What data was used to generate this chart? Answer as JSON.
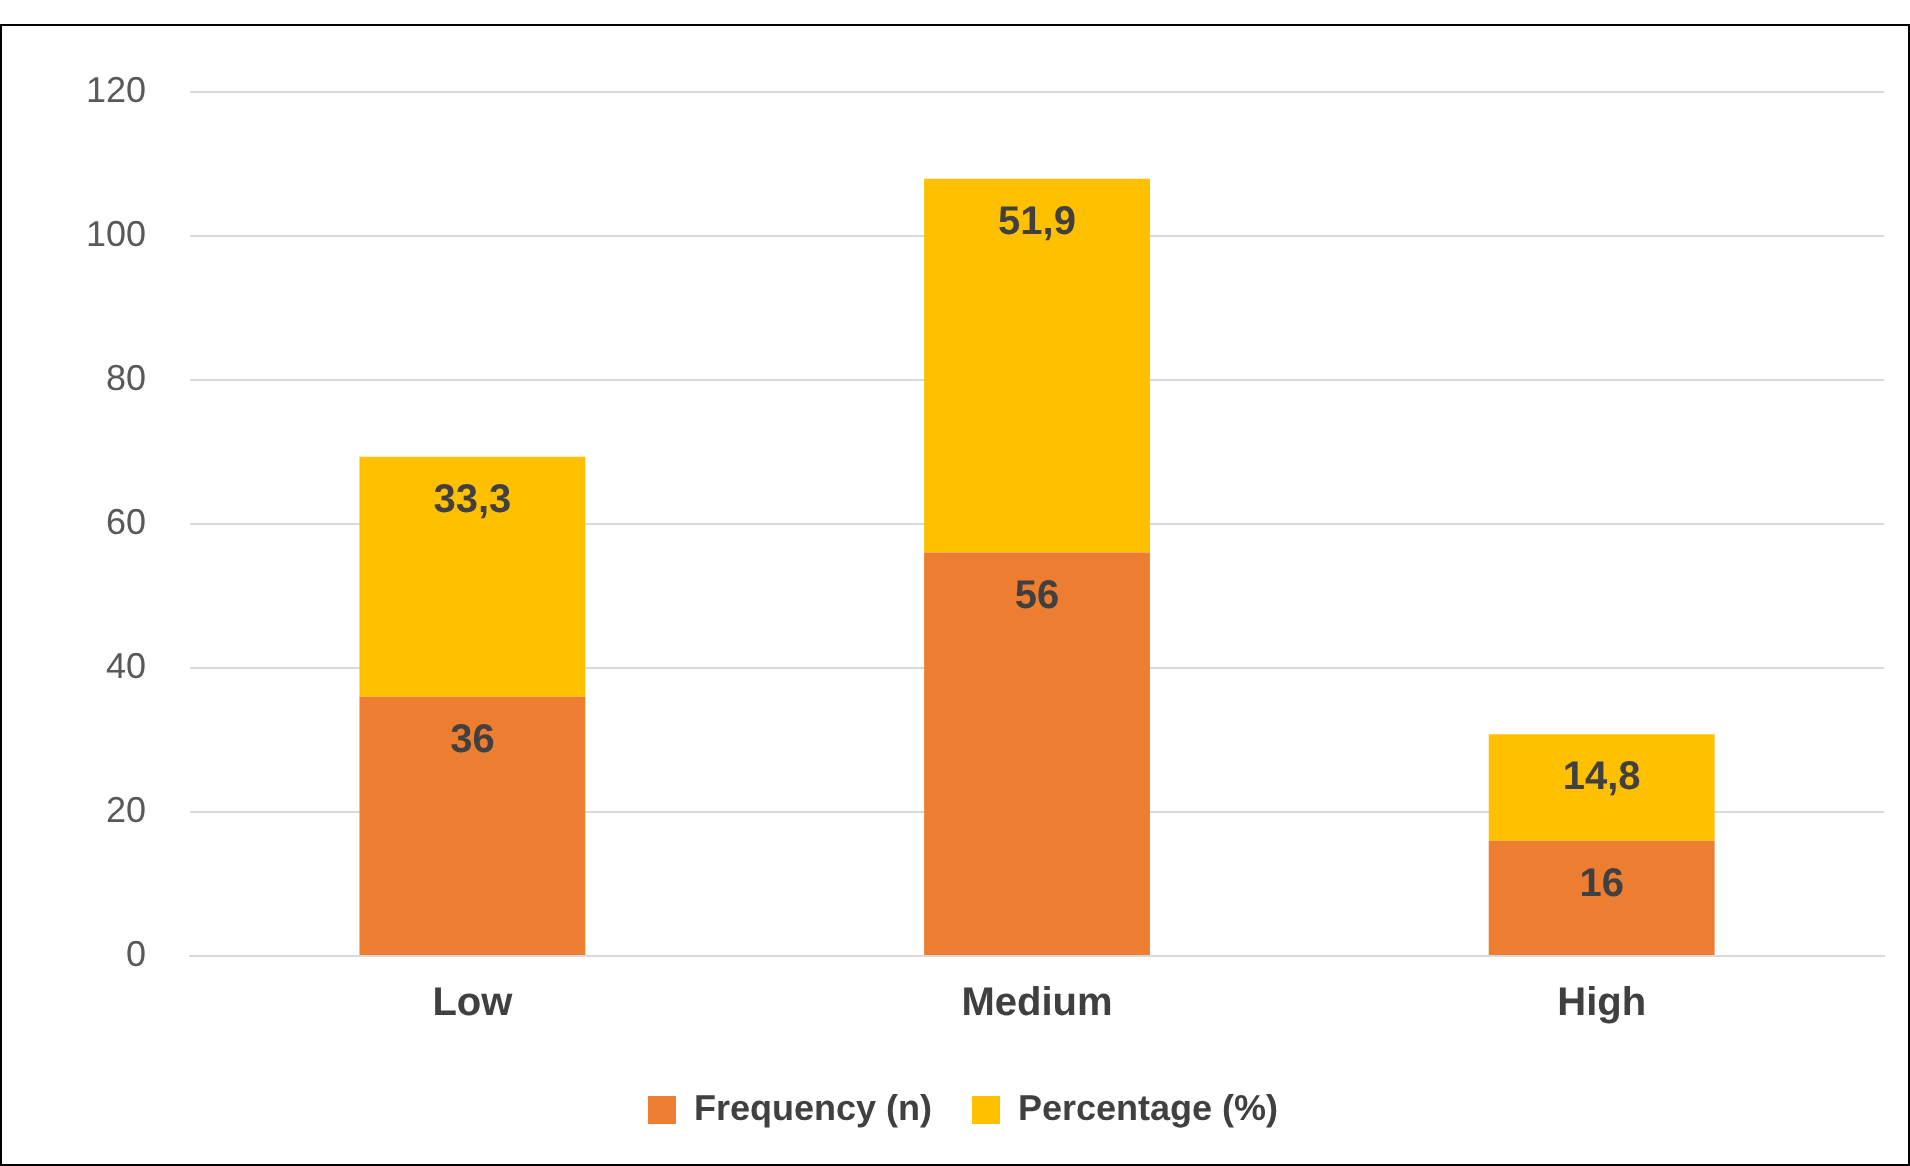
{
  "chart_data": {
    "type": "bar",
    "stacked": true,
    "categories": [
      "Low",
      "Medium",
      "High"
    ],
    "series": [
      {
        "name": "Frequency (n)",
        "color": "#ed7d31",
        "values": [
          36,
          56,
          16
        ],
        "value_labels": [
          "36",
          "56",
          "16"
        ]
      },
      {
        "name": "Percentage (%)",
        "color": "#ffc000",
        "values": [
          33.3,
          51.9,
          14.8
        ],
        "value_labels": [
          "33,3",
          "51,9",
          "14,8"
        ]
      }
    ],
    "ylim": [
      0,
      120
    ],
    "yticks": [
      0,
      20,
      40,
      60,
      80,
      100,
      120
    ],
    "grid": "y",
    "legend": "bottom"
  }
}
